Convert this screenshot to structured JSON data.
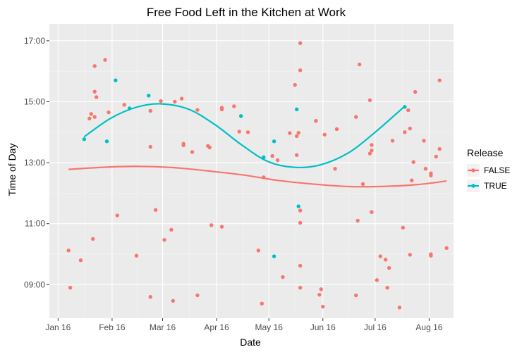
{
  "chart_data": {
    "type": "scatter",
    "title": "Free Food Left in the Kitchen at Work",
    "xlabel": "Date",
    "ylabel": "Time of Day",
    "x_ticks": [
      "2016-01-16",
      "2016-02-16",
      "2016-03-16",
      "2016-04-16",
      "2016-05-16",
      "2016-06-16",
      "2016-07-16",
      "2016-08-16"
    ],
    "x_tick_labels": [
      "Jan 16",
      "Feb 16",
      "Mar 16",
      "Apr 16",
      "May 16",
      "Jun 16",
      "Jul 16",
      "Aug 16"
    ],
    "xlim": [
      "2016-01-11",
      "2016-08-30"
    ],
    "y_ticks": [
      9,
      11,
      13,
      15,
      17
    ],
    "y_tick_labels": [
      "09:00",
      "11:00",
      "13:00",
      "15:00",
      "17:00"
    ],
    "ylim": [
      7.9,
      17.55
    ],
    "grid": true,
    "background": "#ebebeb",
    "legend": {
      "title": "Release",
      "position": "right"
    },
    "series": [
      {
        "name": "FALSE",
        "color": "#f8766d",
        "points": [
          [
            "2016-01-22",
            10.12
          ],
          [
            "2016-01-23",
            8.9
          ],
          [
            "2016-01-29",
            9.8
          ],
          [
            "2016-02-03",
            14.45
          ],
          [
            "2016-02-04",
            14.6
          ],
          [
            "2016-02-05",
            10.5
          ],
          [
            "2016-02-06",
            16.17
          ],
          [
            "2016-02-06",
            15.33
          ],
          [
            "2016-02-06",
            14.5
          ],
          [
            "2016-02-07",
            15.15
          ],
          [
            "2016-02-12",
            16.37
          ],
          [
            "2016-02-14",
            14.65
          ],
          [
            "2016-02-19",
            11.27
          ],
          [
            "2016-02-23",
            14.9
          ],
          [
            "2016-03-01",
            9.95
          ],
          [
            "2016-03-09",
            14.7
          ],
          [
            "2016-03-09",
            13.52
          ],
          [
            "2016-03-09",
            8.6
          ],
          [
            "2016-03-12",
            11.45
          ],
          [
            "2016-03-15",
            15.02
          ],
          [
            "2016-03-17",
            10.47
          ],
          [
            "2016-03-21",
            10.8
          ],
          [
            "2016-03-22",
            8.47
          ],
          [
            "2016-03-23",
            15.0
          ],
          [
            "2016-03-27",
            15.1
          ],
          [
            "2016-03-28",
            13.62
          ],
          [
            "2016-03-28",
            13.57
          ],
          [
            "2016-04-02",
            13.35
          ],
          [
            "2016-04-05",
            14.73
          ],
          [
            "2016-04-05",
            8.65
          ],
          [
            "2016-04-11",
            13.55
          ],
          [
            "2016-04-12",
            13.5
          ],
          [
            "2016-04-13",
            10.95
          ],
          [
            "2016-04-19",
            14.8
          ],
          [
            "2016-04-19",
            14.75
          ],
          [
            "2016-04-19",
            10.9
          ],
          [
            "2016-04-26",
            14.85
          ],
          [
            "2016-04-29",
            14.02
          ],
          [
            "2016-05-04",
            14.0
          ],
          [
            "2016-05-10",
            10.12
          ],
          [
            "2016-05-12",
            8.38
          ],
          [
            "2016-05-13",
            12.52
          ],
          [
            "2016-05-18",
            13.22
          ],
          [
            "2016-05-21",
            13.08
          ],
          [
            "2016-05-24",
            9.25
          ],
          [
            "2016-05-28",
            13.97
          ],
          [
            "2016-05-31",
            15.55
          ],
          [
            "2016-06-01",
            13.25
          ],
          [
            "2016-06-01",
            13.87
          ],
          [
            "2016-06-02",
            13.98
          ],
          [
            "2016-06-03",
            16.92
          ],
          [
            "2016-06-03",
            16.03
          ],
          [
            "2016-06-03",
            11.43
          ],
          [
            "2016-06-03",
            11.03
          ],
          [
            "2016-06-03",
            9.62
          ],
          [
            "2016-06-03",
            8.9
          ],
          [
            "2016-06-12",
            14.37
          ],
          [
            "2016-06-14",
            8.67
          ],
          [
            "2016-06-15",
            8.85
          ],
          [
            "2016-06-16",
            8.28
          ],
          [
            "2016-06-17",
            13.92
          ],
          [
            "2016-06-23",
            12.8
          ],
          [
            "2016-06-24",
            14.1
          ],
          [
            "2016-07-05",
            14.5
          ],
          [
            "2016-07-05",
            8.65
          ],
          [
            "2016-07-06",
            11.1
          ],
          [
            "2016-07-07",
            16.22
          ],
          [
            "2016-07-09",
            12.3
          ],
          [
            "2016-07-13",
            15.05
          ],
          [
            "2016-07-13",
            13.3
          ],
          [
            "2016-07-14",
            13.4
          ],
          [
            "2016-07-14",
            13.58
          ],
          [
            "2016-07-14",
            11.38
          ],
          [
            "2016-07-17",
            9.15
          ],
          [
            "2016-07-19",
            9.93
          ],
          [
            "2016-07-22",
            9.82
          ],
          [
            "2016-07-23",
            8.9
          ],
          [
            "2016-07-24",
            9.55
          ],
          [
            "2016-07-26",
            13.72
          ],
          [
            "2016-07-30",
            8.25
          ],
          [
            "2016-08-01",
            10.87
          ],
          [
            "2016-08-02",
            14.0
          ],
          [
            "2016-08-04",
            14.72
          ],
          [
            "2016-08-05",
            14.12
          ],
          [
            "2016-08-05",
            9.98
          ],
          [
            "2016-08-06",
            12.42
          ],
          [
            "2016-08-07",
            13.02
          ],
          [
            "2016-08-08",
            15.32
          ],
          [
            "2016-08-13",
            13.72
          ],
          [
            "2016-08-14",
            12.8
          ],
          [
            "2016-08-17",
            12.65
          ],
          [
            "2016-08-17",
            12.58
          ],
          [
            "2016-08-17",
            10.0
          ],
          [
            "2016-08-17",
            9.95
          ],
          [
            "2016-08-20",
            13.2
          ],
          [
            "2016-08-22",
            15.7
          ],
          [
            "2016-08-22",
            13.45
          ],
          [
            "2016-08-26",
            10.2
          ]
        ],
        "trend": [
          [
            "2016-01-22",
            12.78
          ],
          [
            "2016-02-11",
            12.85
          ],
          [
            "2016-03-02",
            12.88
          ],
          [
            "2016-03-22",
            12.84
          ],
          [
            "2016-04-11",
            12.73
          ],
          [
            "2016-05-01",
            12.6
          ],
          [
            "2016-05-21",
            12.42
          ],
          [
            "2016-06-10",
            12.3
          ],
          [
            "2016-06-30",
            12.22
          ],
          [
            "2016-07-20",
            12.22
          ],
          [
            "2016-08-09",
            12.28
          ],
          [
            "2016-08-26",
            12.4
          ]
        ]
      },
      {
        "name": "TRUE",
        "color": "#00bfc4",
        "points": [
          [
            "2016-01-31",
            13.77
          ],
          [
            "2016-02-13",
            13.7
          ],
          [
            "2016-02-18",
            15.7
          ],
          [
            "2016-02-26",
            14.78
          ],
          [
            "2016-03-08",
            15.2
          ],
          [
            "2016-04-30",
            14.53
          ],
          [
            "2016-05-13",
            13.18
          ],
          [
            "2016-05-19",
            13.7
          ],
          [
            "2016-05-19",
            9.93
          ],
          [
            "2016-06-01",
            14.75
          ],
          [
            "2016-06-02",
            11.57
          ],
          [
            "2016-08-02",
            14.83
          ]
        ],
        "trend": [
          [
            "2016-01-31",
            13.85
          ],
          [
            "2016-02-15",
            14.45
          ],
          [
            "2016-03-01",
            14.82
          ],
          [
            "2016-03-15",
            14.93
          ],
          [
            "2016-03-31",
            14.75
          ],
          [
            "2016-04-15",
            14.25
          ],
          [
            "2016-04-30",
            13.6
          ],
          [
            "2016-05-15",
            13.05
          ],
          [
            "2016-05-30",
            12.85
          ],
          [
            "2016-06-14",
            12.92
          ],
          [
            "2016-06-30",
            13.3
          ],
          [
            "2016-07-15",
            13.95
          ],
          [
            "2016-08-02",
            14.85
          ]
        ]
      }
    ]
  }
}
